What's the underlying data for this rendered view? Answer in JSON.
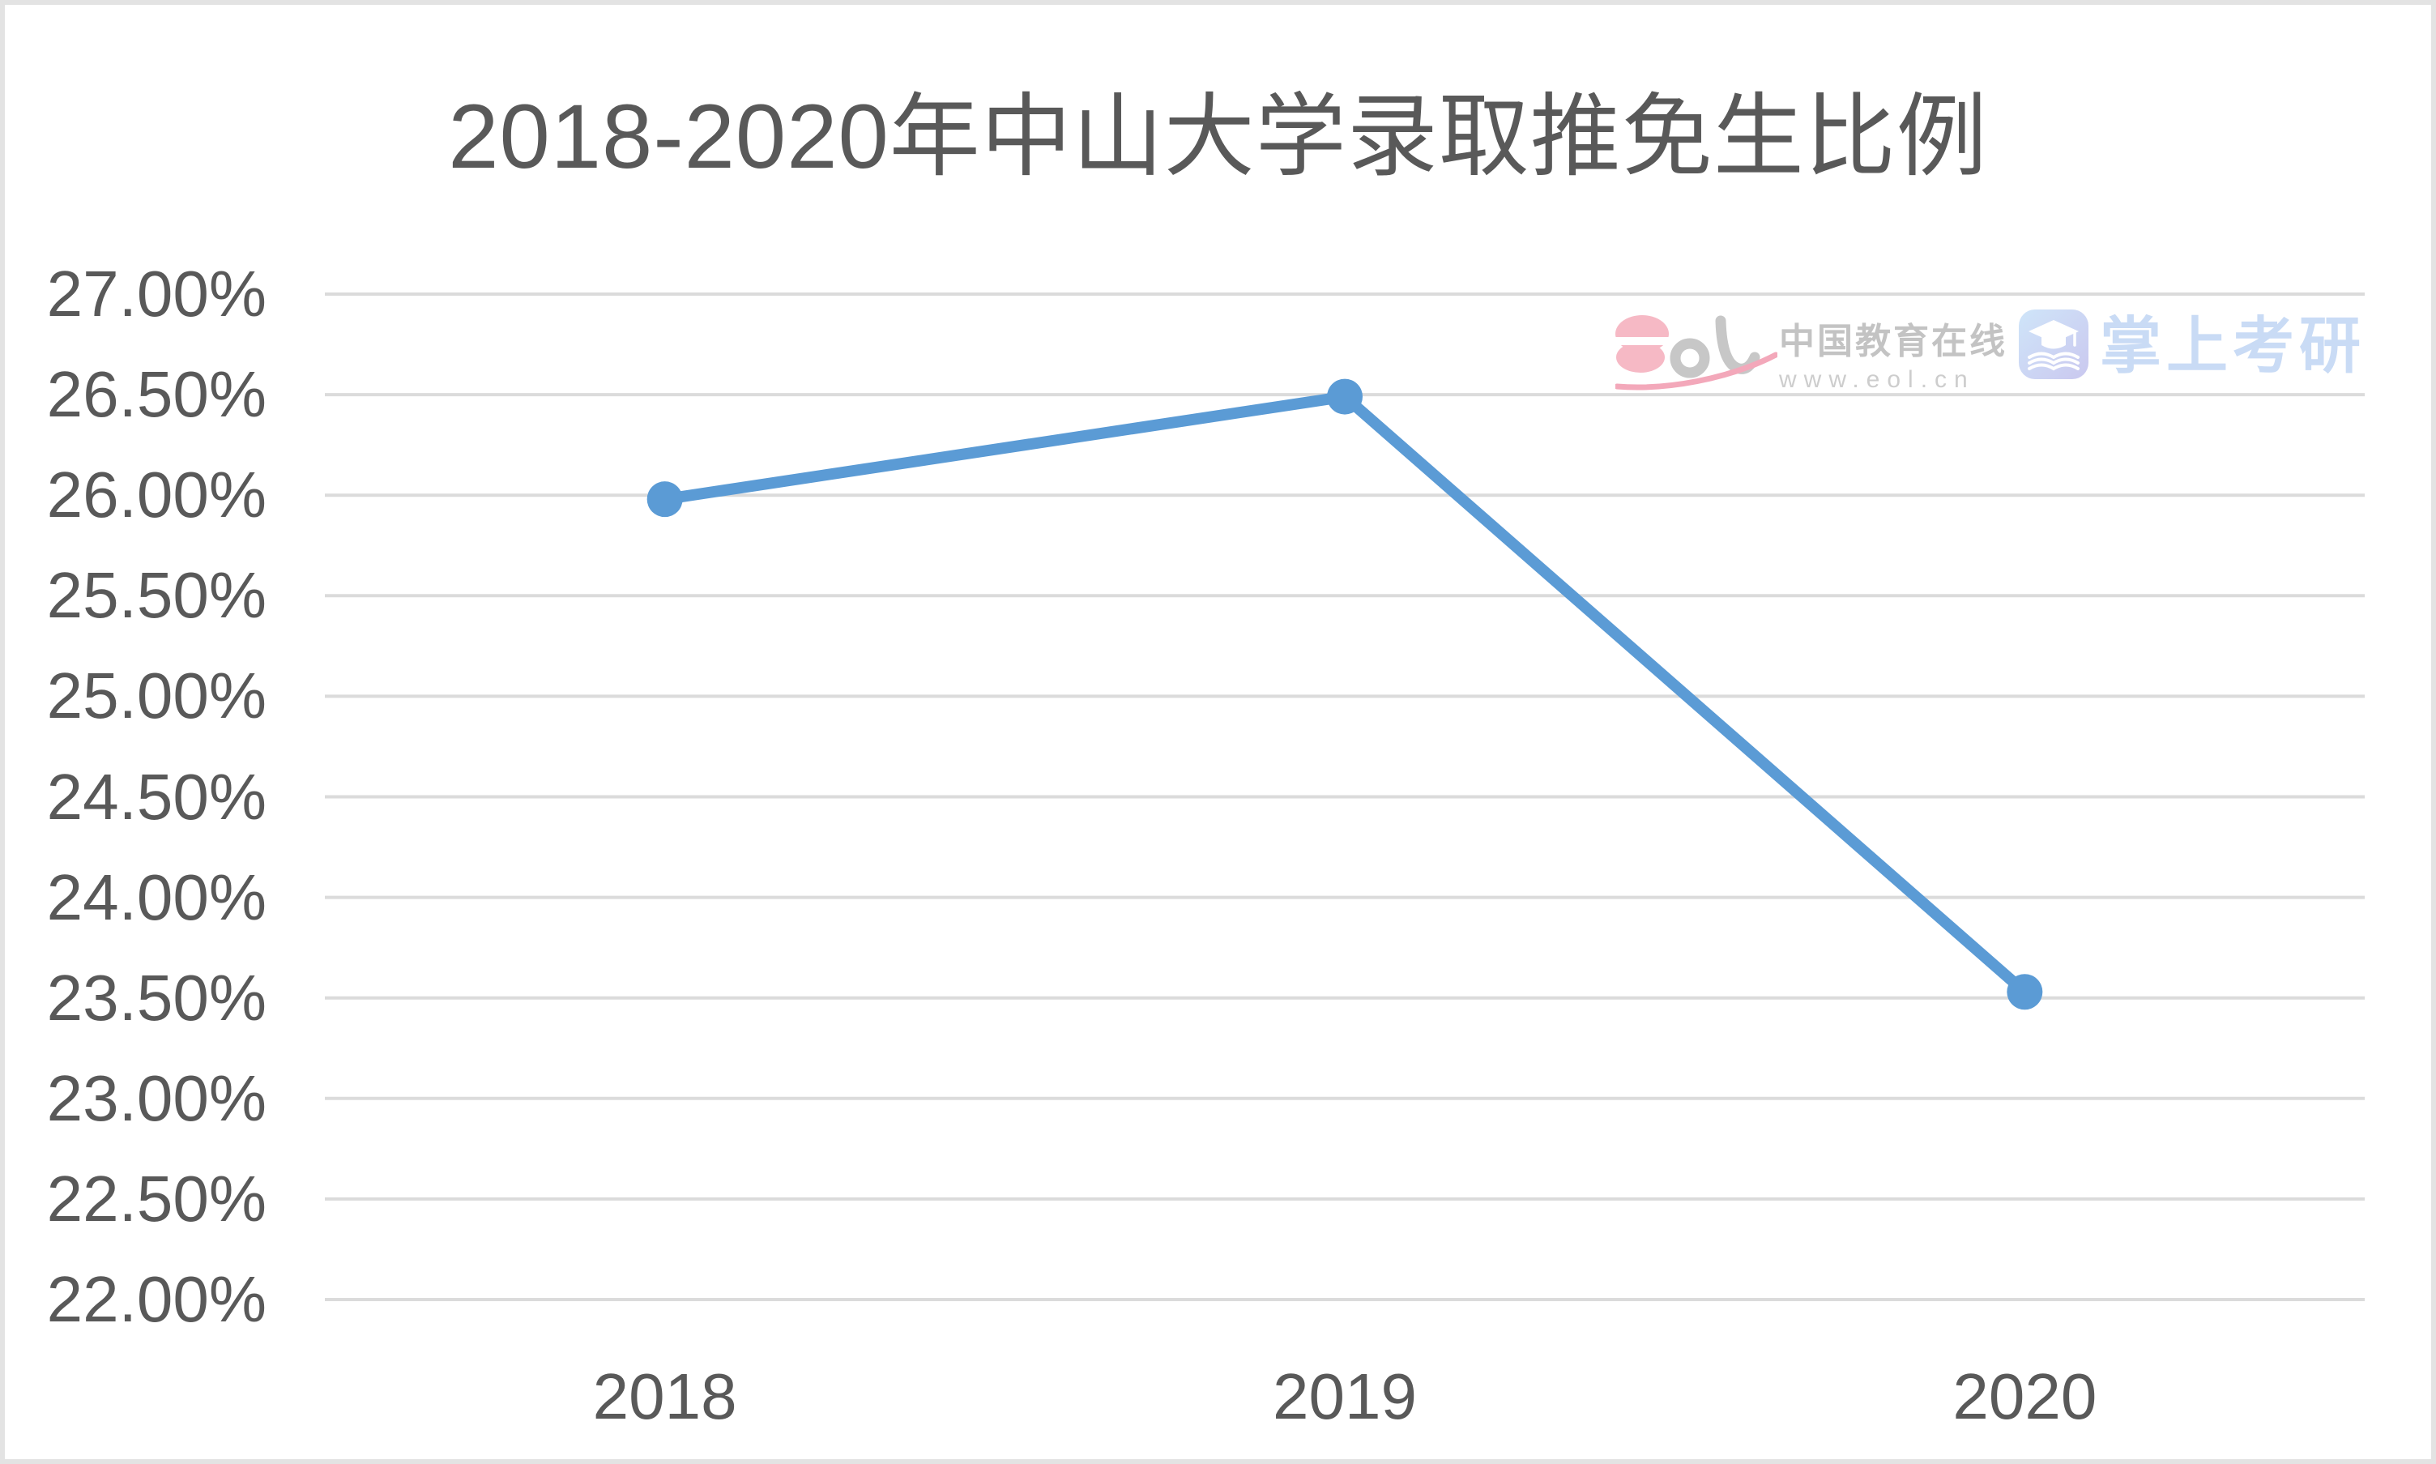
{
  "title": "2018-2020年中山大学录取推免生比例",
  "watermark": {
    "brand": "中国教育在线",
    "url": "www.eol.cn",
    "kaoyan": "掌上考研"
  },
  "colors": {
    "line": "#5B9BD5",
    "marker": "#5B9BD5",
    "gridline": "#DBDBDB",
    "axis_text": "#595959",
    "title_text": "#595959",
    "border": "#E3E3E3",
    "watermark_pink": "#F5B0C0",
    "watermark_gray": "#C7C7C7",
    "watermark_blue": "#C9DBF5"
  },
  "chart_data": {
    "type": "line",
    "title": "2018-2020年中山大学录取推免生比例",
    "categories": [
      "2018",
      "2019",
      "2020"
    ],
    "values": [
      25.98,
      26.49,
      23.53
    ],
    "ylim": [
      22.0,
      27.0
    ],
    "ytick_step": 0.5,
    "ytick_labels": [
      "27.00%",
      "26.50%",
      "26.00%",
      "25.50%",
      "25.00%",
      "24.50%",
      "24.00%",
      "23.50%",
      "23.00%",
      "22.50%",
      "22.00%"
    ],
    "xlabel": "",
    "ylabel": "",
    "grid": "horizontal",
    "legend": "none",
    "marker": "circle"
  }
}
